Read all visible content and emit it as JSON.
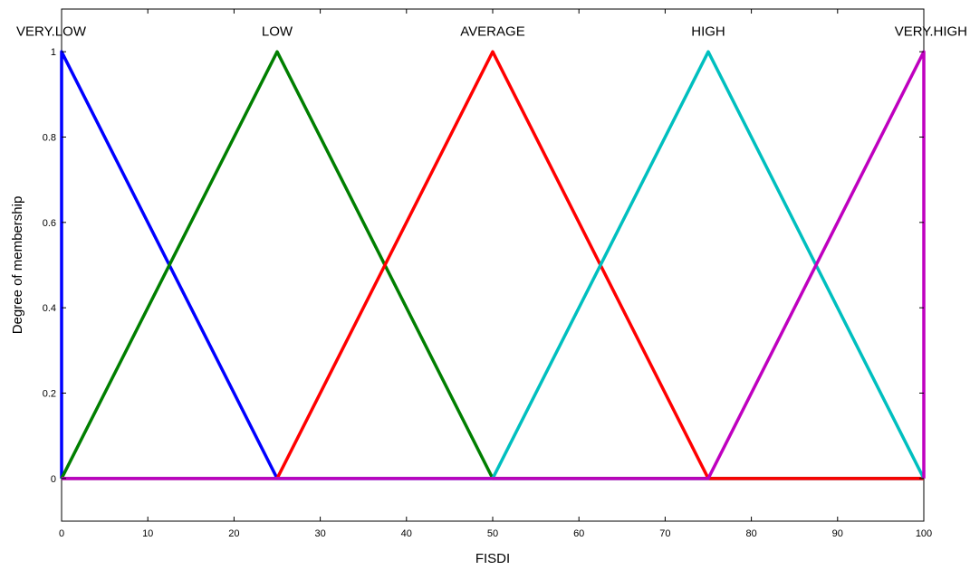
{
  "chart_data": {
    "type": "line",
    "title": "",
    "xlabel": "FISDI",
    "ylabel": "Degree of membership",
    "xlim": [
      0,
      100
    ],
    "ylim": [
      -0.1,
      1.1
    ],
    "x_ticks": [
      0,
      10,
      20,
      30,
      40,
      50,
      60,
      70,
      80,
      90,
      100
    ],
    "y_ticks": [
      0,
      0.2,
      0.4,
      0.6,
      0.8,
      1
    ],
    "x_tick_labels": [
      "0",
      "10",
      "20",
      "30",
      "40",
      "50",
      "60",
      "70",
      "80",
      "90",
      "100"
    ],
    "y_tick_labels": [
      "0",
      "0.2",
      "0.4",
      "0.6",
      "0.8",
      "1"
    ],
    "grid": false,
    "series": [
      {
        "name": "VERY.LOW",
        "color": "#0000ff",
        "x": [
          0,
          0,
          25,
          100
        ],
        "y": [
          0,
          1,
          0,
          0
        ]
      },
      {
        "name": "LOW",
        "color": "#007f00",
        "x": [
          0,
          25,
          50,
          100
        ],
        "y": [
          0,
          1,
          0,
          0
        ]
      },
      {
        "name": "AVERAGE",
        "color": "#ff0000",
        "x": [
          0,
          25,
          50,
          75,
          100
        ],
        "y": [
          0,
          0,
          1,
          0,
          0
        ]
      },
      {
        "name": "HIGH",
        "color": "#00bfbf",
        "x": [
          0,
          50,
          75,
          100
        ],
        "y": [
          0,
          0,
          1,
          0
        ]
      },
      {
        "name": "VERY.HIGH",
        "color": "#bf00bf",
        "x": [
          0,
          75,
          100,
          100
        ],
        "y": [
          0,
          0,
          1,
          0
        ]
      }
    ],
    "annotations": [
      {
        "text": "VERY.LOW",
        "x": 0,
        "y": 1.05
      },
      {
        "text": "LOW",
        "x": 25,
        "y": 1.05
      },
      {
        "text": "AVERAGE",
        "x": 50,
        "y": 1.05
      },
      {
        "text": "HIGH",
        "x": 75,
        "y": 1.05
      },
      {
        "text": "VERY.HIGH",
        "x": 100,
        "y": 1.05
      }
    ]
  }
}
